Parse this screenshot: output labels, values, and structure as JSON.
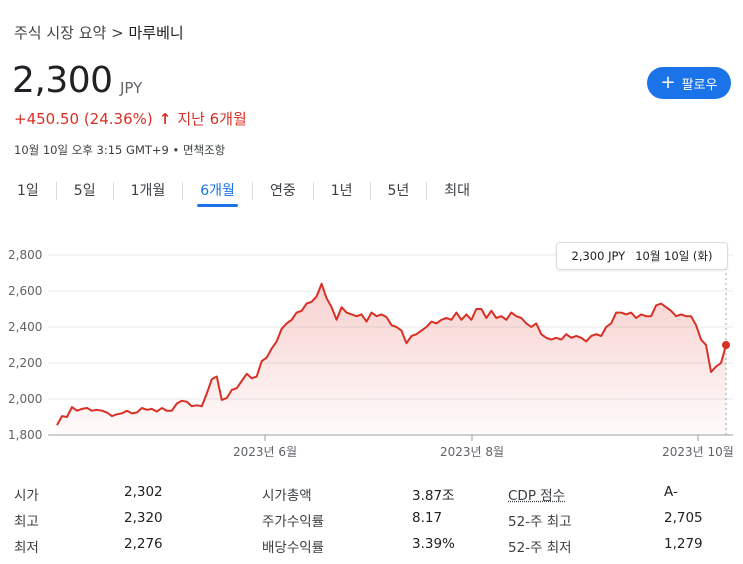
{
  "breadcrumb": {
    "prefix": "주식 시장 요약",
    "separator": ">",
    "current": "마루베니"
  },
  "quote": {
    "price": "2,300",
    "currency": "JPY",
    "change": "+450.50 (24.36%)",
    "change_arrow": "↑",
    "change_period": "지난 6개월",
    "updated": "10월 10일 오후 3:15 GMT+9 • 면책조항"
  },
  "follow_button": {
    "icon": "plus-icon",
    "label": "팔로우"
  },
  "tabs": [
    {
      "label": "1일"
    },
    {
      "label": "5일"
    },
    {
      "label": "1개월"
    },
    {
      "label": "6개월",
      "active": true
    },
    {
      "label": "연중"
    },
    {
      "label": "1년"
    },
    {
      "label": "5년"
    },
    {
      "label": "최대"
    }
  ],
  "tooltip": {
    "price": "2,300 JPY",
    "date": "10월 10일 (화)"
  },
  "colors": {
    "line": "#d93025",
    "accent": "#1a73e8"
  },
  "chart_data": {
    "type": "line",
    "ylim": [
      1800,
      2800
    ],
    "yticks": [
      "1,800",
      "2,000",
      "2,200",
      "2,400",
      "2,600",
      "2,800"
    ],
    "xticks": [
      "2023년 6월",
      "2023년 8월",
      "2023년 10월"
    ],
    "grid": true,
    "series": [
      {
        "values": [
          1855,
          1905,
          1900,
          1955,
          1935,
          1945,
          1950,
          1935,
          1940,
          1935,
          1925,
          1905,
          1915,
          1920,
          1935,
          1920,
          1925,
          1950,
          1940,
          1945,
          1930,
          1950,
          1935,
          1935,
          1975,
          1990,
          1985,
          1960,
          1965,
          1960,
          2030,
          2110,
          2125,
          1995,
          2005,
          2050,
          2060,
          2100,
          2140,
          2115,
          2125,
          2210,
          2230,
          2280,
          2320,
          2390,
          2420,
          2440,
          2480,
          2490,
          2530,
          2540,
          2570,
          2640,
          2560,
          2510,
          2440,
          2510,
          2480,
          2470,
          2460,
          2470,
          2430,
          2480,
          2460,
          2470,
          2455,
          2410,
          2400,
          2380,
          2310,
          2350,
          2360,
          2380,
          2400,
          2430,
          2420,
          2440,
          2450,
          2440,
          2480,
          2440,
          2470,
          2440,
          2500,
          2500,
          2450,
          2490,
          2450,
          2460,
          2440,
          2480,
          2460,
          2450,
          2420,
          2400,
          2420,
          2360,
          2340,
          2330,
          2340,
          2330,
          2360,
          2340,
          2350,
          2340,
          2320,
          2350,
          2360,
          2350,
          2400,
          2420,
          2480,
          2480,
          2470,
          2480,
          2450,
          2470,
          2460,
          2460,
          2520,
          2530,
          2510,
          2490,
          2460,
          2470,
          2460,
          2460,
          2410,
          2330,
          2300,
          2150,
          2180,
          2200,
          2300
        ]
      }
    ]
  },
  "stats": [
    {
      "label": "시가",
      "value": "2,302"
    },
    {
      "label": "최고",
      "value": "2,320"
    },
    {
      "label": "최저",
      "value": "2,276"
    },
    {
      "label": "시가총액",
      "value": "3.87조"
    },
    {
      "label": "주가수익률",
      "value": "8.17"
    },
    {
      "label": "배당수익률",
      "value": "3.39%"
    },
    {
      "label": "CDP 점수",
      "value": "A-"
    },
    {
      "label": "52-주 최고",
      "value": "2,705"
    },
    {
      "label": "52-주 최저",
      "value": "1,279"
    }
  ]
}
